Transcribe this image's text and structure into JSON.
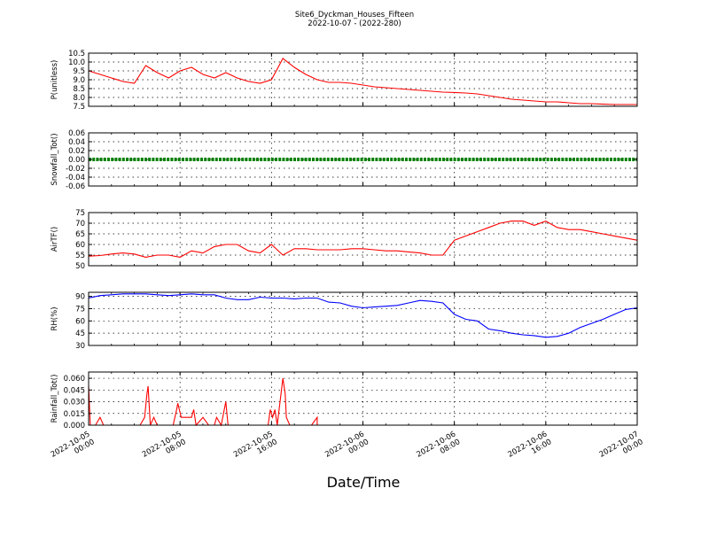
{
  "title": "Site6_Dyckman_Houses_Fifteen",
  "subtitle": "2022-10-07 - (2022-280)",
  "xlabel": "Date/Time",
  "x_ticks": [
    {
      "line1": "2022-10-05",
      "line2": "00:00"
    },
    {
      "line1": "2022-10-05",
      "line2": "08:00"
    },
    {
      "line1": "2022-10-05",
      "line2": "16:00"
    },
    {
      "line1": "2022-10-06",
      "line2": "00:00"
    },
    {
      "line1": "2022-10-06",
      "line2": "08:00"
    },
    {
      "line1": "2022-10-06",
      "line2": "16:00"
    },
    {
      "line1": "2022-10-07",
      "line2": "00:00"
    }
  ],
  "chart_data": [
    {
      "type": "line",
      "ylabel": "P(unitless)",
      "ylim": [
        7.5,
        10.5
      ],
      "yticks": [
        "7.5",
        "8.0",
        "8.5",
        "9.0",
        "9.5",
        "10.0",
        "10.5"
      ],
      "color": "#ff0000",
      "grid": true,
      "x_hours": [
        0,
        1,
        2,
        3,
        4,
        5,
        6,
        7,
        8,
        9,
        10,
        11,
        12,
        13,
        14,
        15,
        16,
        17,
        18,
        19,
        20,
        21,
        22,
        23,
        24,
        25,
        26,
        27,
        28,
        29,
        30,
        31,
        32,
        33,
        34,
        35,
        36,
        37,
        38,
        39,
        40,
        41,
        42,
        43,
        44,
        45,
        46,
        47,
        48
      ],
      "values": [
        9.5,
        9.3,
        9.1,
        8.9,
        8.8,
        9.8,
        9.4,
        9.1,
        9.5,
        9.7,
        9.3,
        9.1,
        9.4,
        9.1,
        8.9,
        8.8,
        9.0,
        10.2,
        9.7,
        9.3,
        9.0,
        8.85,
        8.85,
        8.8,
        8.7,
        8.6,
        8.55,
        8.5,
        8.45,
        8.4,
        8.35,
        8.3,
        8.28,
        8.25,
        8.2,
        8.1,
        8.0,
        7.9,
        7.85,
        7.8,
        7.75,
        7.75,
        7.7,
        7.65,
        7.65,
        7.62,
        7.6,
        7.6,
        7.6
      ]
    },
    {
      "type": "line",
      "ylabel": "Snowfall_Tot()",
      "ylim": [
        -0.06,
        0.06
      ],
      "yticks": [
        "-0.06",
        "-0.04",
        "-0.02",
        "0.00",
        "0.02",
        "0.04",
        "0.06"
      ],
      "color": "#008000",
      "grid": true,
      "x_hours": [
        0,
        48
      ],
      "values": [
        0.0,
        0.0
      ]
    },
    {
      "type": "line",
      "ylabel": "AirTF()",
      "ylim": [
        50,
        75
      ],
      "yticks": [
        "50",
        "55",
        "60",
        "65",
        "70",
        "75"
      ],
      "color": "#ff0000",
      "grid": true,
      "x_hours": [
        0,
        1,
        2,
        3,
        4,
        5,
        6,
        7,
        8,
        9,
        10,
        11,
        12,
        13,
        14,
        15,
        16,
        17,
        18,
        19,
        20,
        21,
        22,
        23,
        24,
        25,
        26,
        27,
        28,
        29,
        30,
        31,
        32,
        33,
        34,
        35,
        36,
        37,
        38,
        39,
        40,
        41,
        42,
        43,
        44,
        45,
        46,
        47,
        48
      ],
      "values": [
        54.5,
        54.8,
        55.5,
        56,
        55.5,
        54,
        55,
        55,
        54,
        57,
        56,
        59,
        60,
        60,
        57,
        56,
        60,
        55,
        58,
        58,
        57.5,
        57.5,
        57.5,
        58,
        58,
        57.5,
        57,
        57,
        56.5,
        56,
        55,
        55,
        62,
        64,
        66,
        68,
        70,
        71,
        71,
        69,
        71,
        68,
        67,
        67,
        66,
        65,
        64,
        63,
        62
      ]
    },
    {
      "type": "line",
      "ylabel": "RH(%)",
      "ylim": [
        30,
        95
      ],
      "yticks": [
        "30",
        "45",
        "60",
        "75",
        "90"
      ],
      "color": "#0000ff",
      "grid": true,
      "x_hours": [
        0,
        1,
        2,
        3,
        4,
        5,
        6,
        7,
        8,
        9,
        10,
        11,
        12,
        13,
        14,
        15,
        16,
        17,
        18,
        19,
        20,
        21,
        22,
        23,
        24,
        25,
        26,
        27,
        28,
        29,
        30,
        31,
        32,
        33,
        34,
        35,
        36,
        37,
        38,
        39,
        40,
        41,
        42,
        43,
        44,
        45,
        46,
        47,
        48
      ],
      "values": [
        88,
        91,
        92,
        93,
        93,
        93,
        92,
        91,
        92,
        93,
        92,
        92,
        88,
        86,
        86,
        89,
        88,
        88,
        87,
        88,
        88,
        83,
        82,
        78,
        76,
        77,
        78,
        79,
        82,
        85,
        84,
        82,
        68,
        62,
        60,
        50,
        48,
        45,
        43,
        42,
        40,
        41,
        45,
        52,
        57,
        62,
        68,
        74,
        76
      ]
    },
    {
      "type": "line",
      "ylabel": "Rainfall_Tot()",
      "ylim": [
        0,
        0.068
      ],
      "yticks": [
        "0.000",
        "0.015",
        "0.030",
        "0.045",
        "0.060"
      ],
      "color": "#ff0000",
      "grid": true,
      "x_hours": [
        0,
        0.15,
        0.3,
        0.6,
        1,
        1.3,
        1.6,
        2,
        2.5,
        3,
        3.5,
        4,
        4.5,
        4.9,
        5.1,
        5.2,
        5.4,
        5.7,
        6,
        6.3,
        6.6,
        7,
        7.4,
        7.7,
        7.8,
        8.1,
        8.2,
        8.4,
        9,
        9.2,
        9.4,
        10,
        10.5,
        11,
        11.2,
        11.6,
        12,
        12.2,
        12.4,
        13,
        14,
        15,
        15.7,
        15.9,
        16.1,
        16.3,
        16.5,
        17,
        17.2,
        17.3,
        17.6,
        18,
        18.5,
        19,
        19.5,
        20,
        20,
        48
      ],
      "values": [
        0.05,
        0,
        0,
        0,
        0.01,
        0,
        0,
        0,
        0,
        0,
        0,
        0,
        0,
        0.01,
        0.04,
        0.05,
        0,
        0.01,
        0,
        0,
        0,
        0,
        0,
        0.02,
        0.028,
        0.01,
        0.01,
        0.01,
        0.01,
        0.02,
        0,
        0.01,
        0,
        0,
        0.01,
        0,
        0.03,
        0,
        0,
        0,
        0,
        0,
        0,
        0.02,
        0.01,
        0.02,
        0,
        0.06,
        0.04,
        0.01,
        0,
        0,
        0,
        0,
        0,
        0.01,
        0,
        0
      ]
    }
  ]
}
